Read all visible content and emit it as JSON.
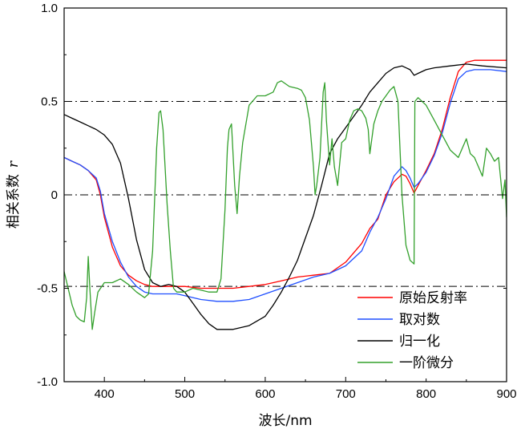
{
  "chart_data": {
    "type": "line",
    "title": "",
    "xlabel": "波长/nm",
    "ylabel": "相关系数",
    "ylabel_symbol": "r",
    "xlim": [
      350,
      900
    ],
    "ylim": [
      -1.0,
      1.0
    ],
    "x_ticks": [
      "400",
      "500",
      "600",
      "700",
      "800",
      "900"
    ],
    "y_ticks": [
      "-1.0",
      "-0.5",
      "0",
      "0.5",
      "1.0"
    ],
    "reference_lines": [
      0.5,
      0,
      -0.49
    ],
    "legend_position": "bottom-right",
    "series": [
      {
        "name": "原始反射率",
        "color": "#ff0000",
        "points": [
          [
            350,
            0.2
          ],
          [
            360,
            0.18
          ],
          [
            370,
            0.16
          ],
          [
            380,
            0.13
          ],
          [
            390,
            0.08
          ],
          [
            395,
            0.0
          ],
          [
            400,
            -0.12
          ],
          [
            410,
            -0.28
          ],
          [
            420,
            -0.38
          ],
          [
            430,
            -0.43
          ],
          [
            440,
            -0.46
          ],
          [
            450,
            -0.48
          ],
          [
            460,
            -0.49
          ],
          [
            470,
            -0.49
          ],
          [
            480,
            -0.49
          ],
          [
            490,
            -0.49
          ],
          [
            500,
            -0.49
          ],
          [
            520,
            -0.5
          ],
          [
            540,
            -0.5
          ],
          [
            560,
            -0.5
          ],
          [
            580,
            -0.49
          ],
          [
            600,
            -0.48
          ],
          [
            620,
            -0.46
          ],
          [
            640,
            -0.44
          ],
          [
            660,
            -0.43
          ],
          [
            680,
            -0.42
          ],
          [
            700,
            -0.36
          ],
          [
            720,
            -0.26
          ],
          [
            730,
            -0.18
          ],
          [
            740,
            -0.13
          ],
          [
            750,
            0.0
          ],
          [
            760,
            0.07
          ],
          [
            770,
            0.11
          ],
          [
            775,
            0.1
          ],
          [
            780,
            0.06
          ],
          [
            785,
            0.01
          ],
          [
            790,
            0.05
          ],
          [
            800,
            0.13
          ],
          [
            810,
            0.22
          ],
          [
            820,
            0.35
          ],
          [
            830,
            0.52
          ],
          [
            840,
            0.66
          ],
          [
            850,
            0.71
          ],
          [
            860,
            0.72
          ],
          [
            880,
            0.72
          ],
          [
            900,
            0.72
          ]
        ]
      },
      {
        "name": "取对数",
        "color": "#1f4fff",
        "points": [
          [
            350,
            0.2
          ],
          [
            360,
            0.18
          ],
          [
            370,
            0.16
          ],
          [
            380,
            0.13
          ],
          [
            390,
            0.09
          ],
          [
            395,
            0.02
          ],
          [
            400,
            -0.1
          ],
          [
            410,
            -0.25
          ],
          [
            420,
            -0.36
          ],
          [
            430,
            -0.44
          ],
          [
            440,
            -0.49
          ],
          [
            450,
            -0.52
          ],
          [
            460,
            -0.53
          ],
          [
            470,
            -0.53
          ],
          [
            480,
            -0.53
          ],
          [
            490,
            -0.53
          ],
          [
            500,
            -0.54
          ],
          [
            520,
            -0.56
          ],
          [
            540,
            -0.57
          ],
          [
            560,
            -0.57
          ],
          [
            580,
            -0.56
          ],
          [
            600,
            -0.53
          ],
          [
            620,
            -0.5
          ],
          [
            640,
            -0.47
          ],
          [
            660,
            -0.44
          ],
          [
            680,
            -0.42
          ],
          [
            700,
            -0.38
          ],
          [
            720,
            -0.3
          ],
          [
            730,
            -0.2
          ],
          [
            740,
            -0.12
          ],
          [
            750,
            -0.02
          ],
          [
            760,
            0.1
          ],
          [
            770,
            0.15
          ],
          [
            775,
            0.13
          ],
          [
            780,
            0.09
          ],
          [
            785,
            0.04
          ],
          [
            790,
            0.06
          ],
          [
            800,
            0.12
          ],
          [
            810,
            0.21
          ],
          [
            820,
            0.33
          ],
          [
            830,
            0.49
          ],
          [
            840,
            0.62
          ],
          [
            850,
            0.66
          ],
          [
            860,
            0.67
          ],
          [
            880,
            0.67
          ],
          [
            900,
            0.66
          ]
        ]
      },
      {
        "name": "归一化",
        "color": "#000000",
        "points": [
          [
            350,
            0.43
          ],
          [
            360,
            0.41
          ],
          [
            370,
            0.39
          ],
          [
            380,
            0.37
          ],
          [
            390,
            0.35
          ],
          [
            400,
            0.32
          ],
          [
            410,
            0.27
          ],
          [
            420,
            0.17
          ],
          [
            430,
            -0.02
          ],
          [
            440,
            -0.24
          ],
          [
            450,
            -0.4
          ],
          [
            460,
            -0.47
          ],
          [
            470,
            -0.49
          ],
          [
            480,
            -0.48
          ],
          [
            490,
            -0.49
          ],
          [
            500,
            -0.52
          ],
          [
            510,
            -0.58
          ],
          [
            520,
            -0.64
          ],
          [
            530,
            -0.69
          ],
          [
            540,
            -0.72
          ],
          [
            560,
            -0.72
          ],
          [
            580,
            -0.7
          ],
          [
            600,
            -0.65
          ],
          [
            610,
            -0.59
          ],
          [
            620,
            -0.52
          ],
          [
            630,
            -0.44
          ],
          [
            640,
            -0.35
          ],
          [
            650,
            -0.23
          ],
          [
            660,
            -0.11
          ],
          [
            670,
            0.05
          ],
          [
            680,
            0.22
          ],
          [
            690,
            0.3
          ],
          [
            700,
            0.36
          ],
          [
            710,
            0.42
          ],
          [
            720,
            0.48
          ],
          [
            730,
            0.55
          ],
          [
            740,
            0.6
          ],
          [
            750,
            0.65
          ],
          [
            760,
            0.68
          ],
          [
            770,
            0.69
          ],
          [
            780,
            0.67
          ],
          [
            785,
            0.64
          ],
          [
            790,
            0.65
          ],
          [
            800,
            0.67
          ],
          [
            810,
            0.68
          ],
          [
            830,
            0.69
          ],
          [
            850,
            0.7
          ],
          [
            870,
            0.69
          ],
          [
            900,
            0.68
          ]
        ]
      },
      {
        "name": "一阶微分",
        "color": "#33a02c",
        "points": [
          [
            350,
            -0.41
          ],
          [
            355,
            -0.5
          ],
          [
            360,
            -0.59
          ],
          [
            365,
            -0.65
          ],
          [
            370,
            -0.67
          ],
          [
            375,
            -0.68
          ],
          [
            378,
            -0.55
          ],
          [
            380,
            -0.33
          ],
          [
            382,
            -0.5
          ],
          [
            385,
            -0.72
          ],
          [
            388,
            -0.63
          ],
          [
            392,
            -0.52
          ],
          [
            400,
            -0.47
          ],
          [
            410,
            -0.47
          ],
          [
            420,
            -0.45
          ],
          [
            430,
            -0.48
          ],
          [
            440,
            -0.52
          ],
          [
            450,
            -0.55
          ],
          [
            455,
            -0.53
          ],
          [
            460,
            -0.3
          ],
          [
            465,
            0.25
          ],
          [
            468,
            0.44
          ],
          [
            470,
            0.45
          ],
          [
            473,
            0.35
          ],
          [
            478,
            -0.05
          ],
          [
            482,
            -0.3
          ],
          [
            486,
            -0.5
          ],
          [
            490,
            -0.52
          ],
          [
            500,
            -0.52
          ],
          [
            510,
            -0.5
          ],
          [
            520,
            -0.51
          ],
          [
            530,
            -0.52
          ],
          [
            540,
            -0.52
          ],
          [
            545,
            -0.45
          ],
          [
            550,
            -0.08
          ],
          [
            553,
            0.25
          ],
          [
            555,
            0.35
          ],
          [
            558,
            0.38
          ],
          [
            562,
            0.05
          ],
          [
            565,
            -0.1
          ],
          [
            568,
            0.1
          ],
          [
            572,
            0.28
          ],
          [
            580,
            0.48
          ],
          [
            590,
            0.53
          ],
          [
            600,
            0.53
          ],
          [
            610,
            0.55
          ],
          [
            615,
            0.6
          ],
          [
            620,
            0.61
          ],
          [
            630,
            0.58
          ],
          [
            640,
            0.57
          ],
          [
            645,
            0.56
          ],
          [
            650,
            0.52
          ],
          [
            655,
            0.4
          ],
          [
            660,
            0.15
          ],
          [
            662,
            0.0
          ],
          [
            664,
            0.05
          ],
          [
            668,
            0.2
          ],
          [
            672,
            0.55
          ],
          [
            674,
            0.6
          ],
          [
            676,
            0.4
          ],
          [
            680,
            0.16
          ],
          [
            683,
            0.3
          ],
          [
            686,
            0.15
          ],
          [
            690,
            0.05
          ],
          [
            695,
            0.28
          ],
          [
            700,
            0.3
          ],
          [
            705,
            0.4
          ],
          [
            710,
            0.45
          ],
          [
            715,
            0.46
          ],
          [
            720,
            0.45
          ],
          [
            725,
            0.41
          ],
          [
            728,
            0.35
          ],
          [
            730,
            0.22
          ],
          [
            735,
            0.38
          ],
          [
            740,
            0.45
          ],
          [
            745,
            0.5
          ],
          [
            750,
            0.53
          ],
          [
            755,
            0.56
          ],
          [
            760,
            0.58
          ],
          [
            765,
            0.5
          ],
          [
            770,
            0.0
          ],
          [
            775,
            -0.27
          ],
          [
            780,
            -0.35
          ],
          [
            785,
            -0.37
          ],
          [
            786,
            0.5
          ],
          [
            790,
            0.52
          ],
          [
            800,
            0.48
          ],
          [
            810,
            0.4
          ],
          [
            820,
            0.32
          ],
          [
            830,
            0.24
          ],
          [
            840,
            0.2
          ],
          [
            845,
            0.25
          ],
          [
            850,
            0.3
          ],
          [
            855,
            0.22
          ],
          [
            860,
            0.2
          ],
          [
            865,
            0.15
          ],
          [
            870,
            0.1
          ],
          [
            875,
            0.25
          ],
          [
            880,
            0.22
          ],
          [
            885,
            0.18
          ],
          [
            890,
            0.2
          ],
          [
            895,
            -0.02
          ],
          [
            898,
            0.08
          ],
          [
            900,
            -0.12
          ]
        ]
      }
    ]
  }
}
